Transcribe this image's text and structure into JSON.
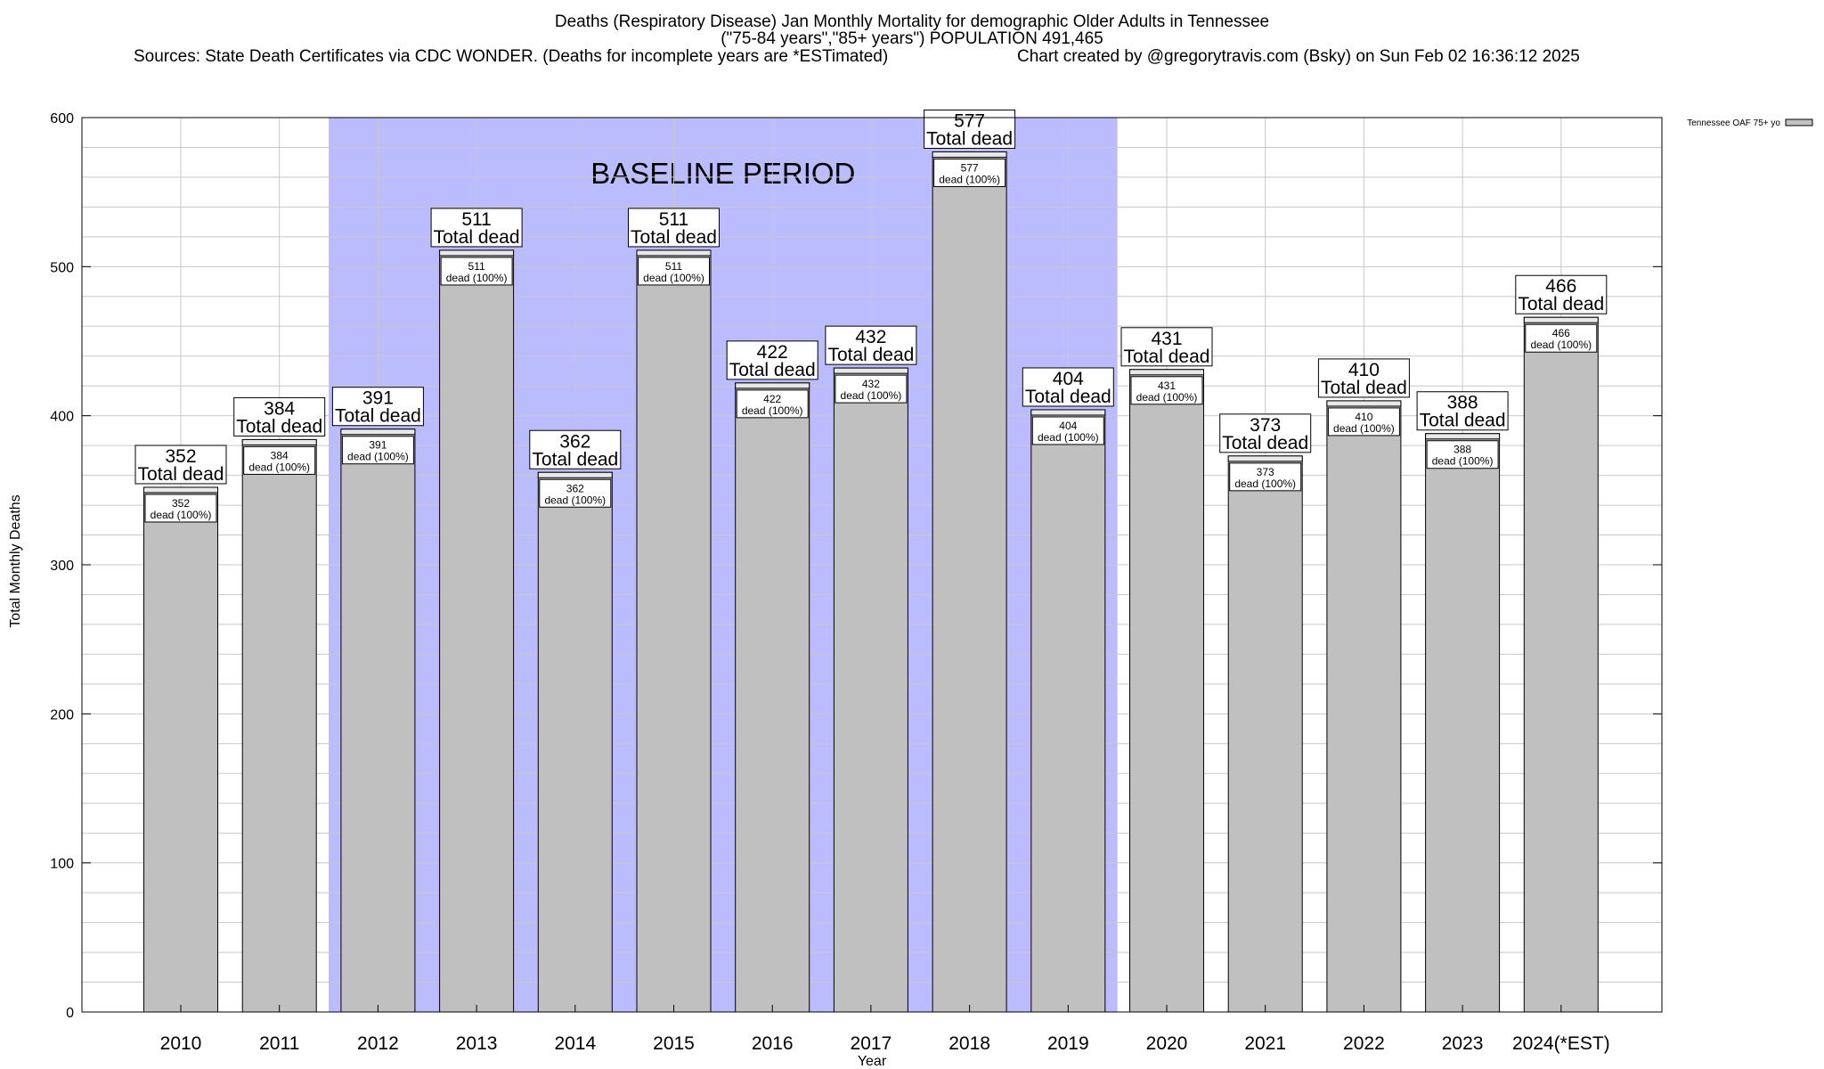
{
  "header": {
    "title": "Deaths (Respiratory Disease) Jan Monthly Mortality for demographic Older Adults in Tennessee",
    "subtitle": "(\"75-84 years\",\"85+ years\") POPULATION 491,465",
    "sources": "Sources: State Death Certificates via CDC WONDER. (Deaths for incomplete years are *ESTimated)",
    "credit": "Chart created by @gregorytravis.com (Bsky) on Sun Feb 02 16:36:12 2025"
  },
  "colors": {
    "bar": "#c0c0c0",
    "baseline_shade": "#bbbbff",
    "grid": "#c8c8c8"
  },
  "chart_data": {
    "type": "bar",
    "xlabel": "Year",
    "ylabel": "Total Monthly Deaths",
    "ylim": [
      0,
      600
    ],
    "yticks": [
      0,
      100,
      200,
      300,
      400,
      500,
      600
    ],
    "grid": true,
    "legend_position": "top-right",
    "categories": [
      "2010",
      "2011",
      "2012",
      "2013",
      "2014",
      "2015",
      "2016",
      "2017",
      "2018",
      "2019",
      "2020",
      "2021",
      "2022",
      "2023",
      "2024(*EST)"
    ],
    "series": [
      {
        "name": "Tennessee OAF 75+ yo",
        "values": [
          352,
          384,
          391,
          511,
          362,
          511,
          422,
          432,
          577,
          404,
          431,
          373,
          410,
          388,
          466
        ]
      }
    ],
    "total_label": "Total dead",
    "inner_label": "dead (100%)",
    "baseline_period": {
      "label": "BASELINE PERIOD",
      "from": "2012",
      "to": "2019"
    }
  }
}
